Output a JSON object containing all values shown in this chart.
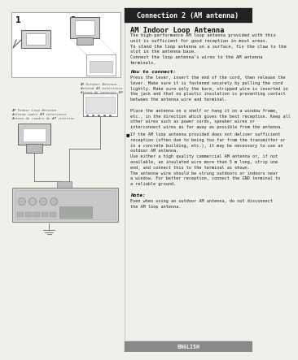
{
  "title_bar_text": "Connection 2 (AM antenna)",
  "title_bar_bg": "#222222",
  "title_bar_color": "#ffffff",
  "section_title": "AM Indoor Loop Antenna",
  "body_lines": [
    "The high-performance AM loop antenna provided with this",
    "unit is sufficient for good reception in most areas.",
    "To stand the loop antenna on a surface, fix the claw to the",
    "slot in the antenna base.",
    "Connect the loop antenna's wires to the AM antenna",
    "terminals."
  ],
  "how_to_connect_label": "How to connect:",
  "htc_lines": [
    "Press the lever, insert the end of the cord, then release the",
    "lever. Make sure it is fastened securely by pulling the cord",
    "lightly. Make sure only the bare, stripped wire is inserted in",
    "the jack and that no plastic insulation is preventing contact",
    "between the antenna wire and terminal.",
    "",
    "Place the antenna on a shelf or hang it on a window frame,",
    "etc., in the direction which gives the best reception. Keep all",
    "other wires such as power cords, speaker wires or",
    "interconnect wires as far away as possible from the antenna."
  ],
  "bullet_lines": [
    "If the AM loop antenna provided does not deliver sufficient",
    "reception (often due to being too far from the transmitter or",
    "in a concrete building, etc.), it may be necessary to use an",
    "outdoor AM antenna.",
    "Use either a high quality commercial AM antenna or, if not",
    "available, an insulated wire more than 5 m long, strip one",
    "end, and connect this to the terminal as shown.",
    "The antenna wire should be strung outdoors or indoors near",
    "a window. For better reception, connect the GND terminal to",
    "a reliable ground."
  ],
  "note_label": "Note:",
  "note_lines": [
    "Even when using an outdoor AM antenna, do not disconnect",
    "the AM loop antenna."
  ],
  "footer_text": "ENGLISH",
  "page_bg": "#f0f0ea",
  "footer_bg": "#888888",
  "footer_text_color": "#ffffff",
  "label_outdoor_1": "AM Outdoor Antenna",
  "label_outdoor_2": "Antenna AM exterieure",
  "label_outdoor_3": "Antena de interior AM",
  "label_indoor_1": "AM Indoor Loop Antenna",
  "label_indoor_2": "Antenna cadre AM interieure",
  "label_indoor_3": "Antena de cuadro de AM interior"
}
